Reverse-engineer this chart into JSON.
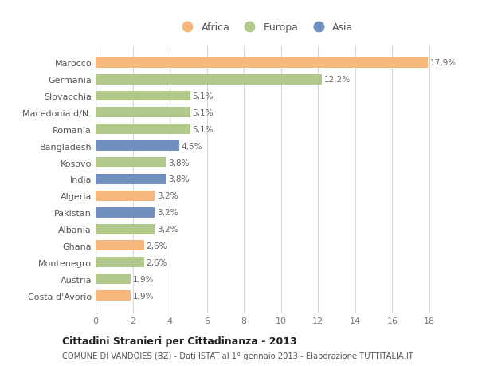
{
  "countries": [
    "Marocco",
    "Germania",
    "Slovacchia",
    "Macedonia d/N.",
    "Romania",
    "Bangladesh",
    "Kosovo",
    "India",
    "Algeria",
    "Pakistan",
    "Albania",
    "Ghana",
    "Montenegro",
    "Austria",
    "Costa d'Avorio"
  ],
  "values": [
    17.9,
    12.2,
    5.1,
    5.1,
    5.1,
    4.5,
    3.8,
    3.8,
    3.2,
    3.2,
    3.2,
    2.6,
    2.6,
    1.9,
    1.9
  ],
  "labels": [
    "17,9%",
    "12,2%",
    "5,1%",
    "5,1%",
    "5,1%",
    "4,5%",
    "3,8%",
    "3,8%",
    "3,2%",
    "3,2%",
    "3,2%",
    "2,6%",
    "2,6%",
    "1,9%",
    "1,9%"
  ],
  "continents": [
    "Africa",
    "Europa",
    "Europa",
    "Europa",
    "Europa",
    "Asia",
    "Europa",
    "Asia",
    "Africa",
    "Asia",
    "Europa",
    "Africa",
    "Europa",
    "Europa",
    "Africa"
  ],
  "colors": {
    "Africa": "#F5B87A",
    "Europa": "#B0C98A",
    "Asia": "#7090C0"
  },
  "xlim_max": 18,
  "xticks": [
    0,
    2,
    4,
    6,
    8,
    10,
    12,
    14,
    16,
    18
  ],
  "title": "Cittadini Stranieri per Cittadinanza - 2013",
  "subtitle": "COMUNE DI VANDOIES (BZ) - Dati ISTAT al 1° gennaio 2013 - Elaborazione TUTTITALIA.IT",
  "bg_color": "#FFFFFF",
  "grid_color": "#D8D8D8",
  "bar_height": 0.62,
  "legend_entries": [
    "Africa",
    "Europa",
    "Asia"
  ]
}
